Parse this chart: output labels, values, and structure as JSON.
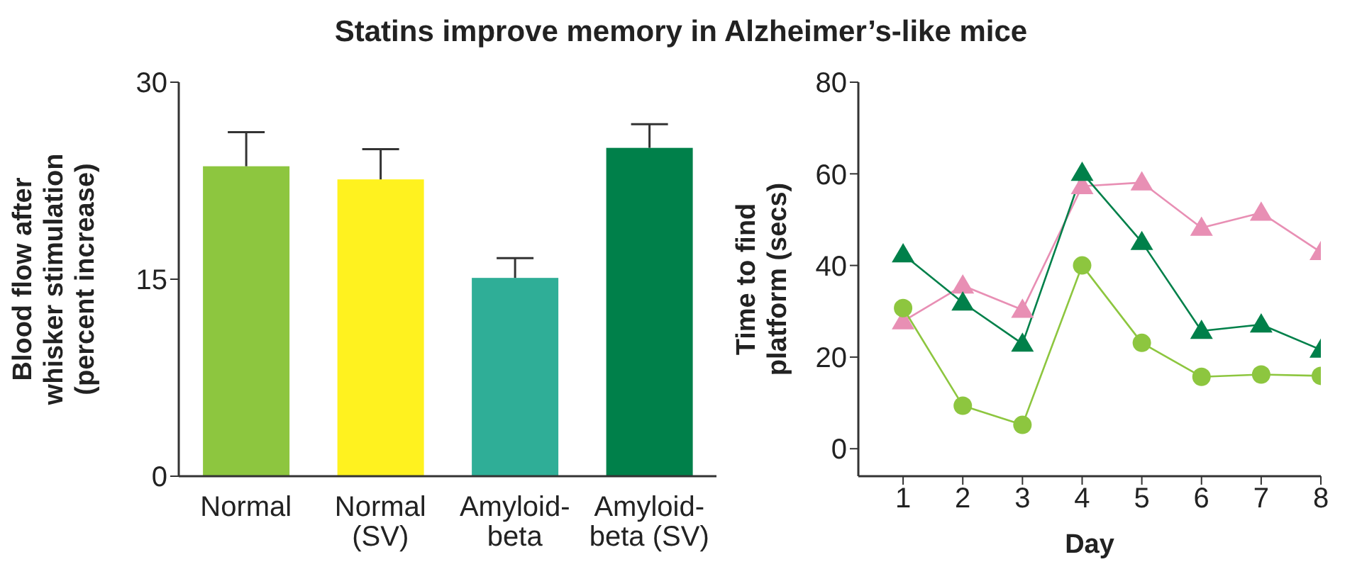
{
  "chart_data": [
    {
      "type": "bar",
      "title": "Statins improve memory in Alzheimer’s-like mice",
      "ylabel": "Blood flow after whisker stimulation (percent increase)",
      "categories": [
        "Normal",
        "Normal (SV)",
        "Amyloid-beta",
        "Amyloid-beta (SV)"
      ],
      "values": [
        23.6,
        22.6,
        15.1,
        25.0
      ],
      "colors": [
        "#8dc63f",
        "#fff21f",
        "#2fae97",
        "#00804a"
      ],
      "errors": [
        [
          23.6,
          26.2
        ],
        [
          22.6,
          24.9
        ],
        [
          15.1,
          16.6
        ],
        [
          25.0,
          26.8
        ]
      ],
      "ylim": [
        0,
        30
      ],
      "yticks": [
        0,
        15,
        30
      ],
      "grid": false,
      "legend": false
    },
    {
      "type": "line",
      "xlabel": "Day",
      "ylabel": "Time to find platform (secs)",
      "x": [
        1,
        2,
        3,
        4,
        5,
        6,
        7,
        8
      ],
      "series": [
        {
          "color": "#e88fb4",
          "marker": "triangle",
          "values": [
            27.8,
            35.6,
            30.3,
            57.3,
            58.1,
            48.2,
            51.5,
            42.9
          ]
        },
        {
          "color": "#00804a",
          "marker": "triangle",
          "values": [
            42.4,
            31.9,
            22.9,
            60.2,
            45.1,
            25.7,
            27.1,
            21.6
          ]
        },
        {
          "color": "#8dc63f",
          "marker": "circle",
          "values": [
            30.7,
            9.4,
            5.2,
            40.0,
            23.1,
            15.7,
            16.2,
            15.9
          ]
        }
      ],
      "xlim": [
        0.25,
        8
      ],
      "xticks": [
        1,
        2,
        3,
        4,
        5,
        6,
        7,
        8
      ],
      "ylim": [
        -6,
        80
      ],
      "yticks": [
        0,
        20,
        40,
        60,
        80
      ],
      "grid": false,
      "legend": false
    }
  ]
}
